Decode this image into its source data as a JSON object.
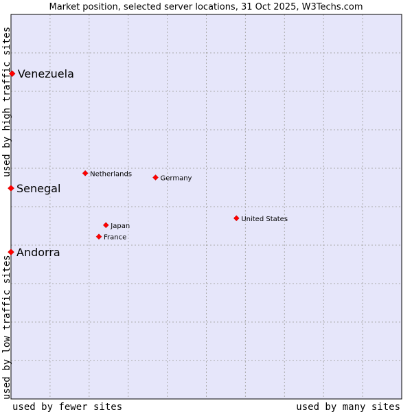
{
  "chart_data": {
    "type": "scatter",
    "title": "Market position, selected server locations, 31 Oct 2025, W3Techs.com",
    "xlabel_left": "used by fewer sites",
    "xlabel_right": "used by many sites",
    "ylabel_bottom": "used by low traffic sites",
    "ylabel_top": "used by high traffic sites",
    "xlim": [
      0,
      100
    ],
    "ylim": [
      0,
      100
    ],
    "grid": true,
    "colors": {
      "plot_background": "#e6e6fa",
      "grid": "#aaaaaa",
      "marker": "#ff0000",
      "frame": "#000000"
    },
    "points": [
      {
        "name": "Venezuela",
        "x": 0.3,
        "y": 84.6,
        "emphasis": true
      },
      {
        "name": "Senegal",
        "x": 0.0,
        "y": 54.8,
        "emphasis": true
      },
      {
        "name": "Andorra",
        "x": 0.0,
        "y": 38.2,
        "emphasis": true
      },
      {
        "name": "Netherlands",
        "x": 19.0,
        "y": 58.7,
        "emphasis": false
      },
      {
        "name": "Germany",
        "x": 37.0,
        "y": 57.6,
        "emphasis": false
      },
      {
        "name": "United States",
        "x": 57.7,
        "y": 47.0,
        "emphasis": false
      },
      {
        "name": "Japan",
        "x": 24.3,
        "y": 45.2,
        "emphasis": false
      },
      {
        "name": "France",
        "x": 22.5,
        "y": 42.2,
        "emphasis": false
      }
    ]
  }
}
